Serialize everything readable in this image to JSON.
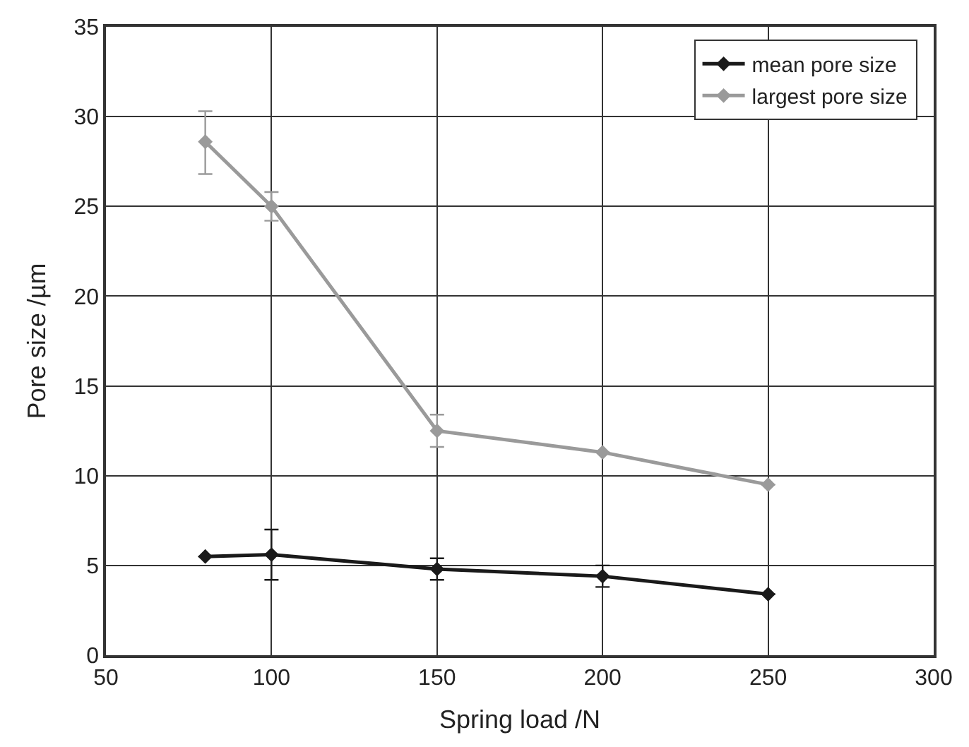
{
  "chart_data": {
    "type": "line",
    "xlabel": "Spring load /N",
    "ylabel": "Pore size /µm",
    "xlim": [
      50,
      300
    ],
    "xticks": [
      50,
      100,
      150,
      200,
      250,
      300
    ],
    "ylim": [
      0,
      35
    ],
    "yticks": [
      0,
      5,
      10,
      15,
      20,
      25,
      30,
      35
    ],
    "grid": true,
    "legend": "top right",
    "marker": "diamond",
    "x": [
      80,
      100,
      150,
      200,
      250
    ],
    "series": [
      {
        "name": "mean pore size",
        "color": "#1a1a1a",
        "values": [
          5.5,
          5.6,
          4.8,
          4.4,
          3.4
        ],
        "errors": [
          null,
          1.4,
          0.6,
          0.6,
          null
        ]
      },
      {
        "name": "largest pore size",
        "color": "#9a9a9a",
        "values": [
          28.6,
          25.0,
          12.5,
          11.3,
          9.5
        ],
        "errors": [
          [
            26.8,
            30.3
          ],
          [
            24.2,
            25.8
          ],
          [
            11.6,
            13.4
          ],
          null,
          null
        ]
      }
    ]
  }
}
